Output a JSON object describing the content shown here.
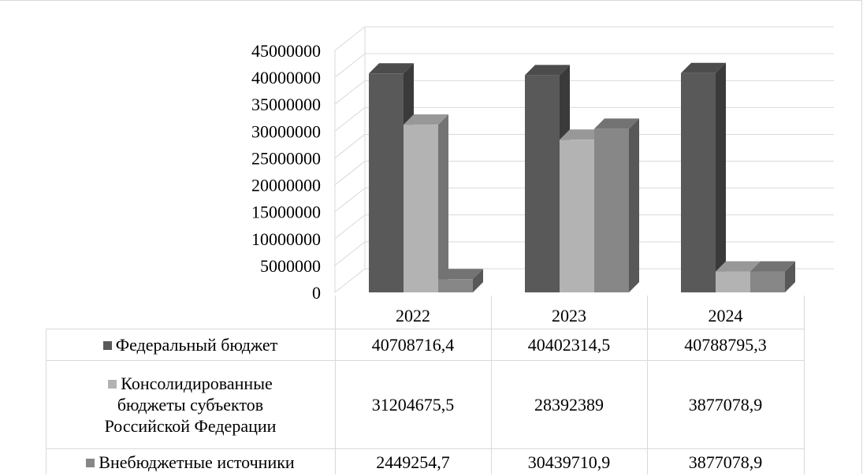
{
  "chart_data": {
    "type": "bar",
    "style": "3d-column-with-data-table",
    "categories": [
      "2022",
      "2023",
      "2024"
    ],
    "ylim": [
      0,
      45000000
    ],
    "yticks": [
      "45000000",
      "40000000",
      "35000000",
      "30000000",
      "25000000",
      "20000000",
      "15000000",
      "10000000",
      "5000000",
      "0"
    ],
    "grid": true,
    "series": [
      {
        "name": "Федеральный бюджет",
        "name_lines": [
          "Федеральный бюджет"
        ],
        "color": "#595959",
        "values": [
          40708716.4,
          40402314.5,
          40788795.3
        ],
        "labels": [
          "40708716,4",
          "40402314,5",
          "40788795,3"
        ]
      },
      {
        "name": "Консолидированные бюджеты субъектов Российской Федерации",
        "name_lines": [
          "Консолидированные",
          "бюджеты субъектов",
          "Российской Федерации"
        ],
        "color": "#b3b3b3",
        "values": [
          31204675.5,
          28392389,
          3877078.9
        ],
        "labels": [
          "31204675,5",
          "28392389",
          "3877078,9"
        ]
      },
      {
        "name": "Внебюджетные источники",
        "name_lines": [
          "Внебюджетные источники"
        ],
        "color": "#878787",
        "values": [
          2449254.7,
          30439710.9,
          3877078.9
        ],
        "labels": [
          "2449254,7",
          "30439710,9",
          "3877078,9"
        ]
      }
    ]
  }
}
